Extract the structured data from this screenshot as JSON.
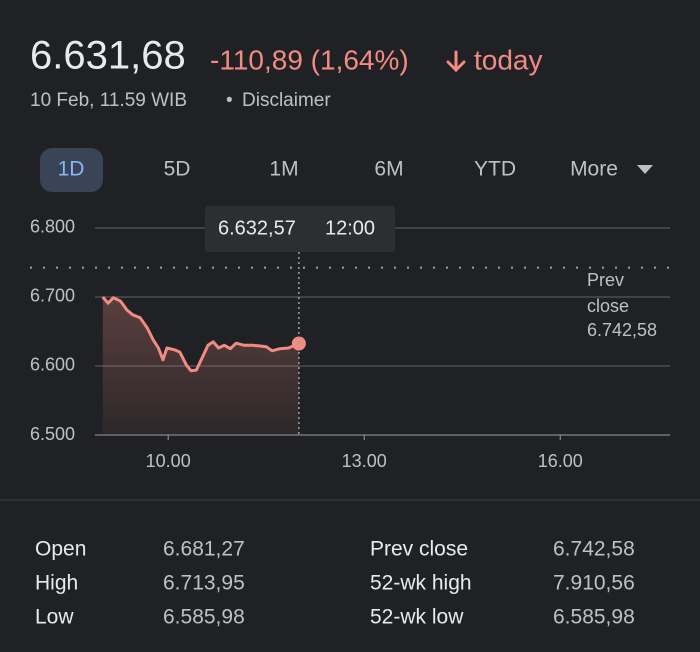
{
  "header": {
    "price": "6.631,68",
    "change": "-110,89 (1,64%)",
    "period": "today",
    "timestamp": "10 Feb, 11.59 WIB",
    "separator": "•",
    "disclaimer": "Disclaimer"
  },
  "ranges": [
    "1D",
    "5D",
    "1M",
    "6M",
    "YTD",
    "More"
  ],
  "chart_data": {
    "type": "line",
    "color": "#f28b82",
    "x": [
      9.0,
      9.08,
      9.16,
      9.27,
      9.37,
      9.46,
      9.57,
      9.68,
      9.77,
      9.85,
      9.92,
      9.98,
      10.11,
      10.18,
      10.28,
      10.35,
      10.43,
      10.52,
      10.61,
      10.69,
      10.77,
      10.86,
      10.95,
      11.04,
      11.16,
      11.29,
      11.41,
      11.5,
      11.59,
      11.71,
      11.84,
      12.0
    ],
    "values": [
      6700,
      6691,
      6699,
      6694,
      6681,
      6674,
      6670,
      6655,
      6638,
      6626,
      6609,
      6626,
      6623,
      6620,
      6601,
      6593,
      6594,
      6612,
      6630,
      6635,
      6626,
      6630,
      6625,
      6633,
      6630,
      6630,
      6629,
      6628,
      6622,
      6625,
      6626,
      6632.57
    ],
    "xlim": [
      8.88,
      17.68
    ],
    "ylim": [
      6500,
      6826
    ],
    "xticks": [
      {
        "value": 10,
        "label": "10.00"
      },
      {
        "value": 13,
        "label": "13.00"
      },
      {
        "value": 16,
        "label": "16.00"
      }
    ],
    "yticks": [
      {
        "value": 6500,
        "label": "6.500"
      },
      {
        "value": 6600,
        "label": "6.600"
      },
      {
        "value": 6700,
        "label": "6.700"
      },
      {
        "value": 6800,
        "label": "6.800"
      }
    ],
    "grid": true,
    "prev_close": {
      "name": "Prev close",
      "value": 6742.58,
      "label": "6.742,58"
    },
    "tooltip": {
      "x": 12,
      "x_label": "12:00",
      "value": 6632.57,
      "label": "6.632,57"
    }
  },
  "stats": {
    "rows": [
      [
        "Open",
        "6.681,27",
        "Prev close",
        "6.742,58"
      ],
      [
        "High",
        "6.713,95",
        "52-wk high",
        "7.910,56"
      ],
      [
        "Low",
        "6.585,98",
        "52-wk low",
        "6.585,98"
      ]
    ]
  }
}
